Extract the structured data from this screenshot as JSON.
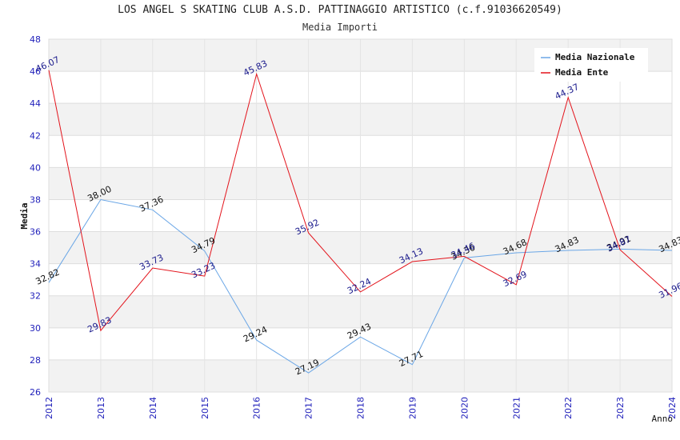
{
  "chart_data": {
    "type": "line",
    "title": "LOS ANGEL S SKATING CLUB A.S.D. PATTINAGGIO ARTISTICO (c.f.91036620549)",
    "subtitle": "Media Importi",
    "xlabel": "Anno",
    "ylabel": "Media",
    "ylim": [
      26,
      48
    ],
    "yticks": [
      "26",
      "28",
      "30",
      "32",
      "34",
      "36",
      "38",
      "40",
      "42",
      "44",
      "46",
      "48"
    ],
    "categories": [
      "2012",
      "2013",
      "2014",
      "2015",
      "2016",
      "2017",
      "2018",
      "2019",
      "2020",
      "2021",
      "2022",
      "2023",
      "2024"
    ],
    "grid": true,
    "legend_position": "top-right",
    "series": [
      {
        "name": "Media Nazionale",
        "color": "#6aa6e6",
        "label_color": "#111111",
        "values": [
          32.82,
          38.0,
          37.36,
          34.79,
          29.24,
          27.19,
          29.43,
          27.71,
          34.36,
          34.68,
          34.83,
          34.91,
          34.83
        ],
        "labels": [
          "32.82",
          "38.00",
          "37.36",
          "34.79",
          "29.24",
          "27.19",
          "29.43",
          "27.71",
          "34.36",
          "34.68",
          "34.83",
          "34.91",
          "34.83"
        ]
      },
      {
        "name": "Media Ente",
        "color": "#e3131b",
        "label_color": "#1a1a8c",
        "values": [
          46.07,
          29.83,
          33.73,
          33.23,
          45.83,
          35.92,
          32.24,
          34.13,
          34.46,
          32.69,
          44.37,
          34.87,
          31.96
        ],
        "labels": [
          "46.07",
          "29.83",
          "33.73",
          "33.23",
          "45.83",
          "35.92",
          "32.24",
          "34.13",
          "34.46",
          "32.69",
          "44.37",
          "34.87",
          "31.96"
        ]
      }
    ]
  }
}
